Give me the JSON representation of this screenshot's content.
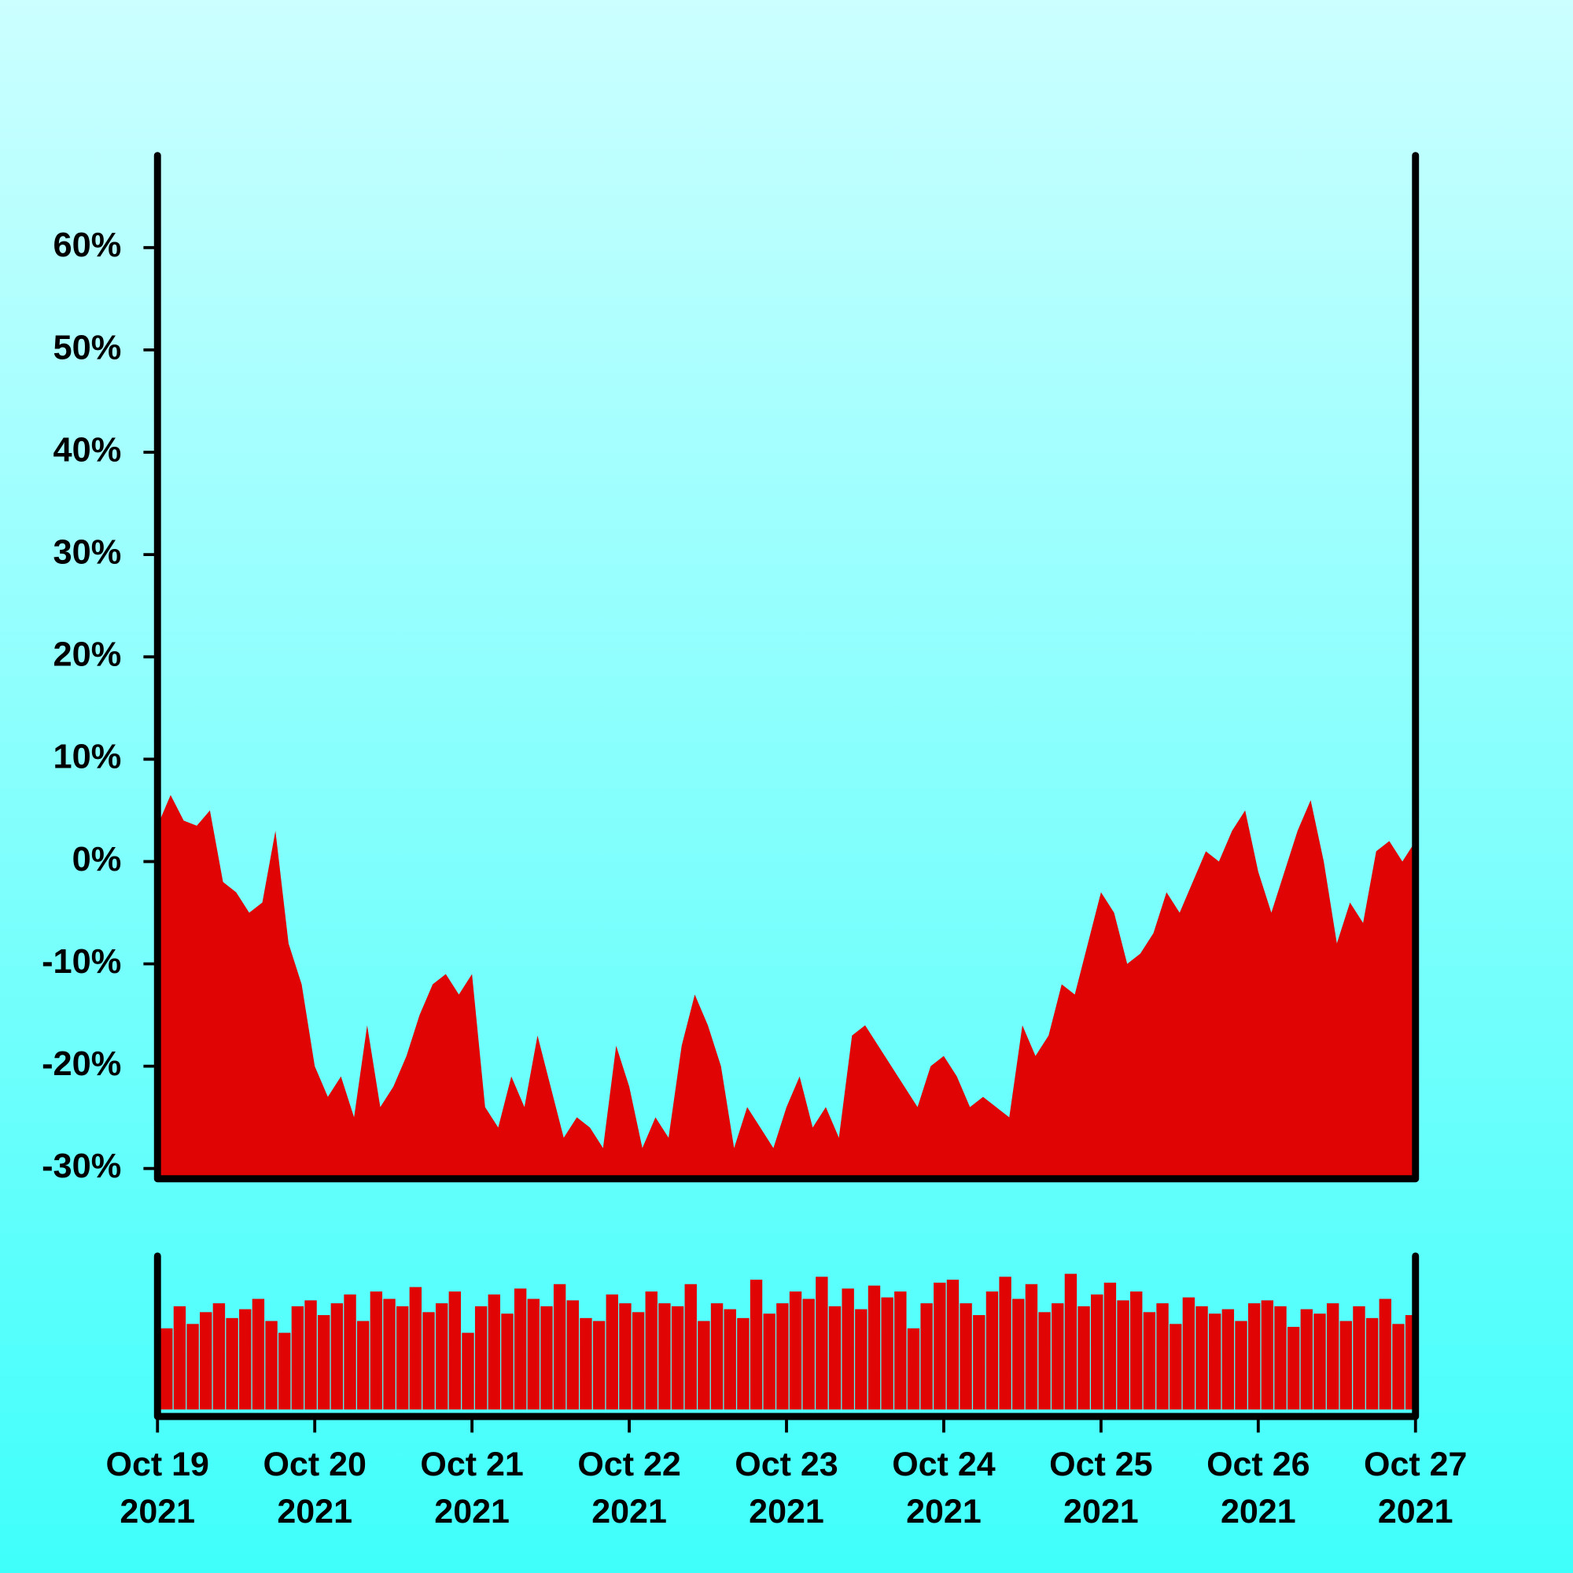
{
  "chart_data": [
    {
      "type": "area",
      "x": [
        "2021-10-19T00:00",
        "2021-10-19T02:00",
        "2021-10-19T04:00",
        "2021-10-19T06:00",
        "2021-10-19T08:00",
        "2021-10-19T10:00",
        "2021-10-19T12:00",
        "2021-10-19T14:00",
        "2021-10-19T16:00",
        "2021-10-19T18:00",
        "2021-10-19T20:00",
        "2021-10-19T22:00",
        "2021-10-20T00:00",
        "2021-10-20T02:00",
        "2021-10-20T04:00",
        "2021-10-20T06:00",
        "2021-10-20T08:00",
        "2021-10-20T10:00",
        "2021-10-20T12:00",
        "2021-10-20T14:00",
        "2021-10-20T16:00",
        "2021-10-20T18:00",
        "2021-10-20T20:00",
        "2021-10-20T22:00",
        "2021-10-21T00:00",
        "2021-10-21T02:00",
        "2021-10-21T04:00",
        "2021-10-21T06:00",
        "2021-10-21T08:00",
        "2021-10-21T10:00",
        "2021-10-21T12:00",
        "2021-10-21T14:00",
        "2021-10-21T16:00",
        "2021-10-21T18:00",
        "2021-10-21T20:00",
        "2021-10-21T22:00",
        "2021-10-22T00:00",
        "2021-10-22T02:00",
        "2021-10-22T04:00",
        "2021-10-22T06:00",
        "2021-10-22T08:00",
        "2021-10-22T10:00",
        "2021-10-22T12:00",
        "2021-10-22T14:00",
        "2021-10-22T16:00",
        "2021-10-22T18:00",
        "2021-10-22T20:00",
        "2021-10-22T22:00",
        "2021-10-23T00:00",
        "2021-10-23T02:00",
        "2021-10-23T04:00",
        "2021-10-23T06:00",
        "2021-10-23T08:00",
        "2021-10-23T10:00",
        "2021-10-23T12:00",
        "2021-10-23T14:00",
        "2021-10-23T16:00",
        "2021-10-23T18:00",
        "2021-10-23T20:00",
        "2021-10-23T22:00",
        "2021-10-24T00:00",
        "2021-10-24T02:00",
        "2021-10-24T04:00",
        "2021-10-24T06:00",
        "2021-10-24T08:00",
        "2021-10-24T10:00",
        "2021-10-24T12:00",
        "2021-10-24T14:00",
        "2021-10-24T16:00",
        "2021-10-24T18:00",
        "2021-10-24T20:00",
        "2021-10-24T22:00",
        "2021-10-25T00:00",
        "2021-10-25T02:00",
        "2021-10-25T04:00",
        "2021-10-25T06:00",
        "2021-10-25T08:00",
        "2021-10-25T10:00",
        "2021-10-25T12:00",
        "2021-10-25T14:00",
        "2021-10-25T16:00",
        "2021-10-25T18:00",
        "2021-10-25T20:00",
        "2021-10-25T22:00",
        "2021-10-26T00:00",
        "2021-10-26T02:00",
        "2021-10-26T04:00",
        "2021-10-26T06:00",
        "2021-10-26T08:00",
        "2021-10-26T10:00",
        "2021-10-26T12:00",
        "2021-10-26T14:00",
        "2021-10-26T16:00",
        "2021-10-26T18:00",
        "2021-10-26T20:00",
        "2021-10-26T22:00",
        "2021-10-27T00:00"
      ],
      "values": [
        3.5,
        6.5,
        4,
        3.5,
        5,
        -2,
        -3,
        -5,
        -4,
        3,
        -8,
        -12,
        -20,
        -23,
        -21,
        -25,
        -16,
        -24,
        -22,
        -19,
        -15,
        -12,
        -11,
        -13,
        -11,
        -24,
        -26,
        -21,
        -24,
        -17,
        -22,
        -27,
        -25,
        -26,
        -28,
        -18,
        -22,
        -28,
        -25,
        -27,
        -18,
        -13,
        -16,
        -20,
        -28,
        -24,
        -26,
        -28,
        -24,
        -21,
        -26,
        -24,
        -27,
        -17,
        -16,
        -18,
        -20,
        -22,
        -24,
        -20,
        -19,
        -21,
        -24,
        -23,
        -24,
        -25,
        -16,
        -19,
        -17,
        -12,
        -13,
        -8,
        -3,
        -5,
        -10,
        -9,
        -7,
        -3,
        -5,
        -2,
        1,
        0,
        3,
        5,
        -1,
        -5,
        -1,
        3,
        6,
        0,
        -8,
        -4,
        -6,
        1,
        2,
        0,
        2
      ],
      "color": "#e00404",
      "xlim": [
        "2021-10-19T00:00",
        "2021-10-27T00:00"
      ],
      "ylim": [
        -31,
        69
      ],
      "yticks": [
        {
          "value": -30,
          "label": "-30%"
        },
        {
          "value": -20,
          "label": "-20%"
        },
        {
          "value": -10,
          "label": "-10%"
        },
        {
          "value": 0,
          "label": "0%"
        },
        {
          "value": 10,
          "label": "10%"
        },
        {
          "value": 20,
          "label": "20%"
        },
        {
          "value": 30,
          "label": "30%"
        },
        {
          "value": 40,
          "label": "40%"
        },
        {
          "value": 50,
          "label": "50%"
        },
        {
          "value": 60,
          "label": "60%"
        }
      ]
    },
    {
      "type": "bar",
      "x": [
        "2021-10-19T00:00",
        "2021-10-19T02:00",
        "2021-10-19T04:00",
        "2021-10-19T06:00",
        "2021-10-19T08:00",
        "2021-10-19T10:00",
        "2021-10-19T12:00",
        "2021-10-19T14:00",
        "2021-10-19T16:00",
        "2021-10-19T18:00",
        "2021-10-19T20:00",
        "2021-10-19T22:00",
        "2021-10-20T00:00",
        "2021-10-20T02:00",
        "2021-10-20T04:00",
        "2021-10-20T06:00",
        "2021-10-20T08:00",
        "2021-10-20T10:00",
        "2021-10-20T12:00",
        "2021-10-20T14:00",
        "2021-10-20T16:00",
        "2021-10-20T18:00",
        "2021-10-20T20:00",
        "2021-10-20T22:00",
        "2021-10-21T00:00",
        "2021-10-21T02:00",
        "2021-10-21T04:00",
        "2021-10-21T06:00",
        "2021-10-21T08:00",
        "2021-10-21T10:00",
        "2021-10-21T12:00",
        "2021-10-21T14:00",
        "2021-10-21T16:00",
        "2021-10-21T18:00",
        "2021-10-21T20:00",
        "2021-10-21T22:00",
        "2021-10-22T00:00",
        "2021-10-22T02:00",
        "2021-10-22T04:00",
        "2021-10-22T06:00",
        "2021-10-22T08:00",
        "2021-10-22T10:00",
        "2021-10-22T12:00",
        "2021-10-22T14:00",
        "2021-10-22T16:00",
        "2021-10-22T18:00",
        "2021-10-22T20:00",
        "2021-10-22T22:00",
        "2021-10-23T00:00",
        "2021-10-23T02:00",
        "2021-10-23T04:00",
        "2021-10-23T06:00",
        "2021-10-23T08:00",
        "2021-10-23T10:00",
        "2021-10-23T12:00",
        "2021-10-23T14:00",
        "2021-10-23T16:00",
        "2021-10-23T18:00",
        "2021-10-23T20:00",
        "2021-10-23T22:00",
        "2021-10-24T00:00",
        "2021-10-24T02:00",
        "2021-10-24T04:00",
        "2021-10-24T06:00",
        "2021-10-24T08:00",
        "2021-10-24T10:00",
        "2021-10-24T12:00",
        "2021-10-24T14:00",
        "2021-10-24T16:00",
        "2021-10-24T18:00",
        "2021-10-24T20:00",
        "2021-10-24T22:00",
        "2021-10-25T00:00",
        "2021-10-25T02:00",
        "2021-10-25T04:00",
        "2021-10-25T06:00",
        "2021-10-25T08:00",
        "2021-10-25T10:00",
        "2021-10-25T12:00",
        "2021-10-25T14:00",
        "2021-10-25T16:00",
        "2021-10-25T18:00",
        "2021-10-25T20:00",
        "2021-10-25T22:00",
        "2021-10-26T00:00",
        "2021-10-26T02:00",
        "2021-10-26T04:00",
        "2021-10-26T06:00",
        "2021-10-26T08:00",
        "2021-10-26T10:00",
        "2021-10-26T12:00",
        "2021-10-26T14:00",
        "2021-10-26T16:00",
        "2021-10-26T18:00",
        "2021-10-26T20:00",
        "2021-10-26T22:00"
      ],
      "values": [
        55,
        70,
        58,
        66,
        72,
        62,
        68,
        75,
        60,
        52,
        70,
        74,
        64,
        72,
        78,
        60,
        80,
        75,
        70,
        83,
        66,
        72,
        80,
        52,
        70,
        78,
        65,
        82,
        75,
        70,
        85,
        74,
        62,
        60,
        78,
        72,
        66,
        80,
        72,
        70,
        85,
        60,
        72,
        68,
        62,
        88,
        65,
        72,
        80,
        75,
        90,
        70,
        82,
        68,
        84,
        76,
        80,
        55,
        72,
        86,
        88,
        72,
        64,
        80,
        90,
        75,
        85,
        66,
        72,
        92,
        70,
        78,
        86,
        74,
        80,
        66,
        72,
        58,
        76,
        70,
        65,
        68,
        60,
        72,
        74,
        70,
        56,
        68,
        65,
        72,
        60,
        70,
        62,
        75,
        58,
        64
      ],
      "color": "#e00404",
      "xlim": [
        "2021-10-19T00:00",
        "2021-10-27T00:00"
      ],
      "ylim": [
        0,
        100
      ],
      "xticks": [
        {
          "value": "2021-10-19",
          "label": "Oct 19\n2021"
        },
        {
          "value": "2021-10-20",
          "label": "Oct 20\n2021"
        },
        {
          "value": "2021-10-21",
          "label": "Oct 21\n2021"
        },
        {
          "value": "2021-10-22",
          "label": "Oct 22\n2021"
        },
        {
          "value": "2021-10-23",
          "label": "Oct 23\n2021"
        },
        {
          "value": "2021-10-24",
          "label": "Oct 24\n2021"
        },
        {
          "value": "2021-10-25",
          "label": "Oct 25\n2021"
        },
        {
          "value": "2021-10-26",
          "label": "Oct 26\n2021"
        },
        {
          "value": "2021-10-27",
          "label": "Oct 27\n2021"
        }
      ]
    }
  ]
}
